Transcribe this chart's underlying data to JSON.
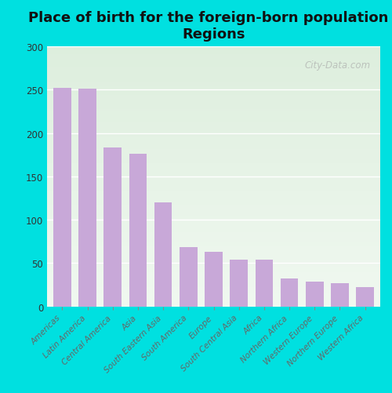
{
  "title": "Place of birth for the foreign-born population -\nRegions",
  "categories": [
    "Americas",
    "Latin America",
    "Central America",
    "Asia",
    "South Eastern Asia",
    "South America",
    "Europe",
    "South Central Asia",
    "Africa",
    "Northern Africa",
    "Western Europe",
    "Northern Europe",
    "Western Africa"
  ],
  "values": [
    252,
    251,
    183,
    176,
    120,
    68,
    63,
    54,
    54,
    32,
    29,
    27,
    22
  ],
  "bar_color": "#c8a8d8",
  "background_outer": "#00e0e0",
  "background_inner_top": "#ddeedd",
  "background_inner_bottom": "#f0f8f0",
  "ylim": [
    0,
    300
  ],
  "yticks": [
    0,
    50,
    100,
    150,
    200,
    250,
    300
  ],
  "title_fontsize": 13,
  "tick_label_fontsize": 7.5,
  "watermark": "City-Data.com"
}
